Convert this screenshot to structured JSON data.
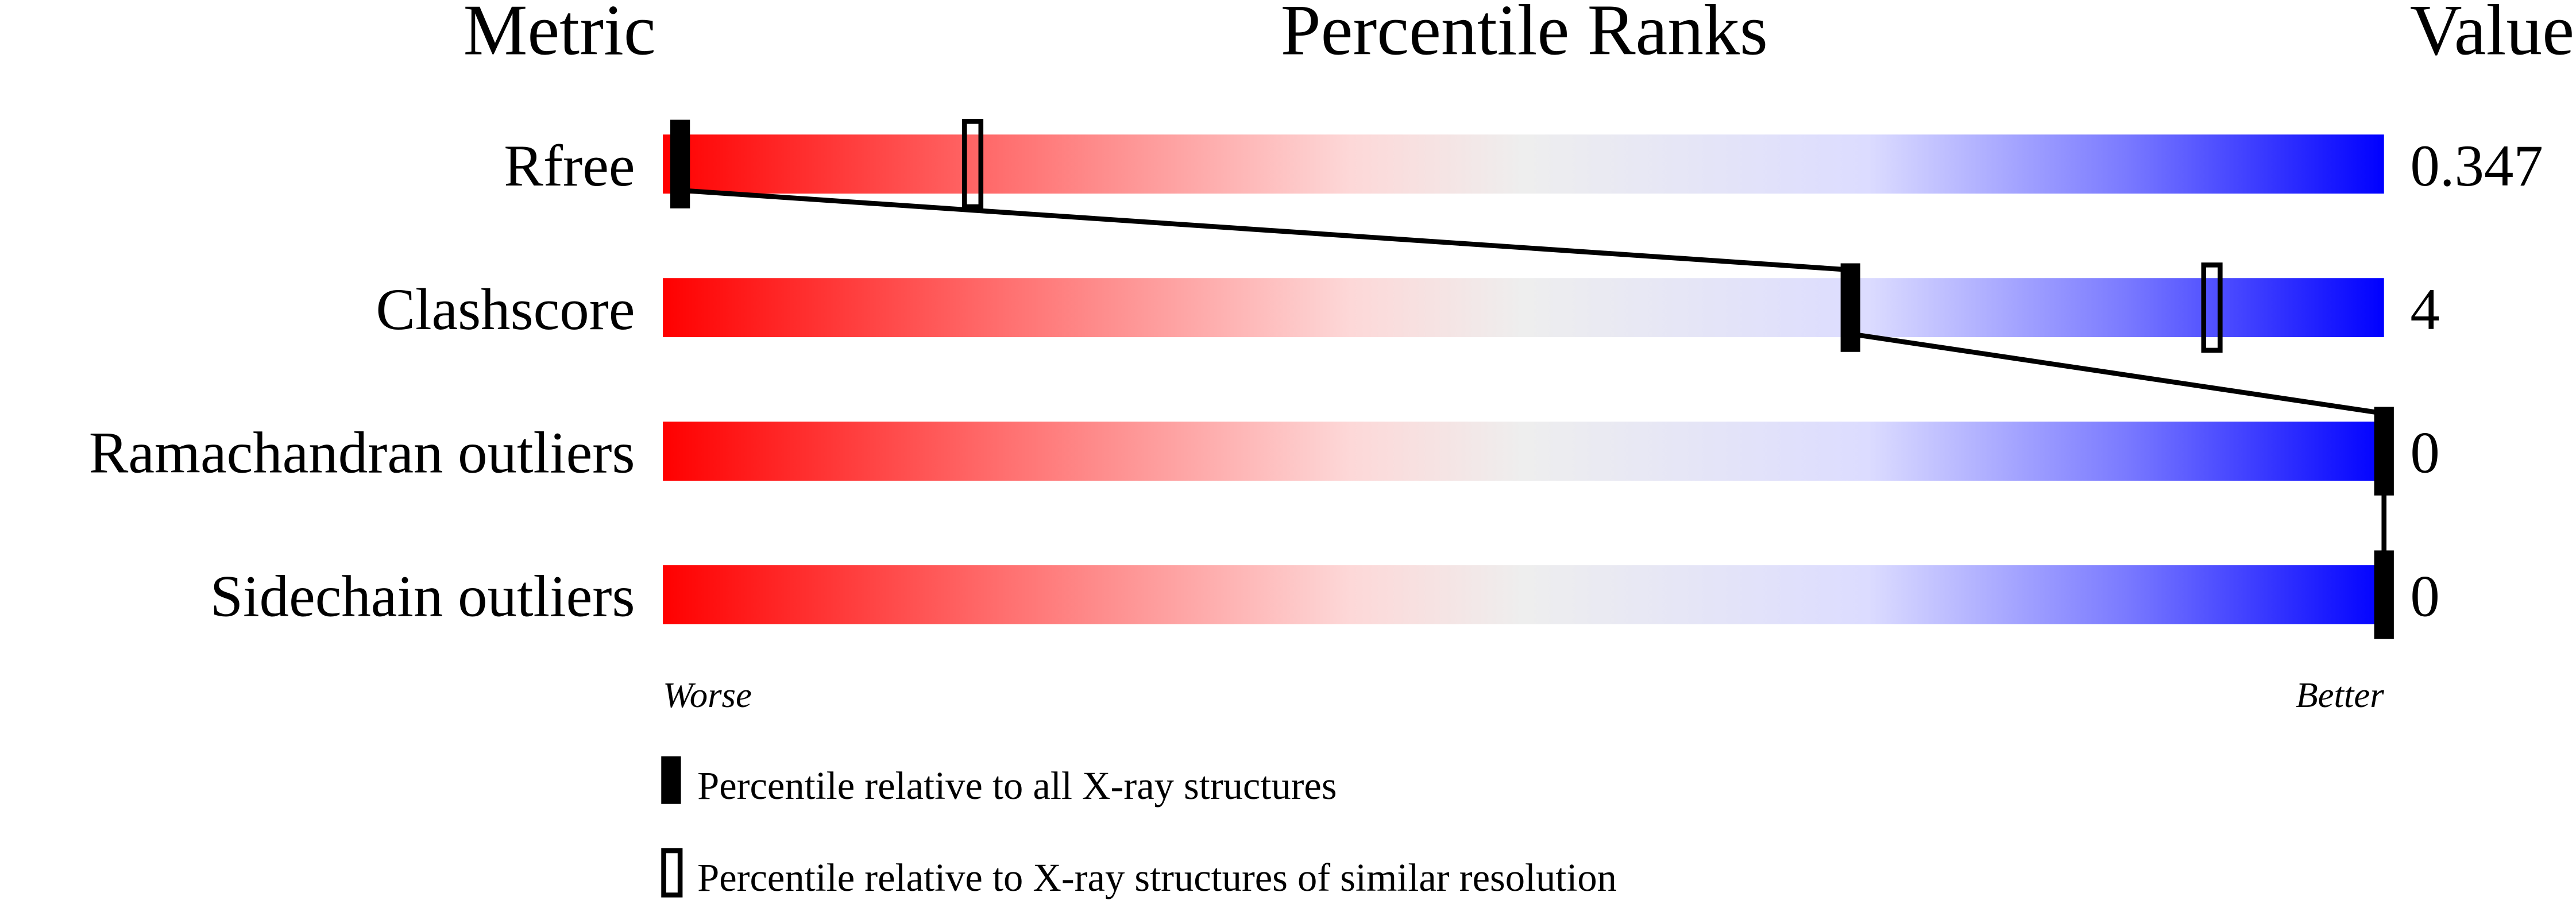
{
  "chart_data": {
    "type": "percentile-slider",
    "headers": {
      "metric": "Metric",
      "ranks": "Percentile Ranks",
      "value": "Value"
    },
    "xlim": [
      0,
      100
    ],
    "axis_labels": {
      "left": "Worse",
      "right": "Better"
    },
    "gradient_colors": [
      "#ff0000",
      "#ff7070",
      "#fdd8d8",
      "#eeeeee",
      "#dcdcff",
      "#7a7aff",
      "#0000ff"
    ],
    "metrics": [
      {
        "name": "Rfree",
        "value": "0.347",
        "percentile_all": 1,
        "percentile_similar": 18
      },
      {
        "name": "Clashscore",
        "value": "4",
        "percentile_all": 69,
        "percentile_similar": 90
      },
      {
        "name": "Ramachandran outliers",
        "value": "0",
        "percentile_all": 100,
        "percentile_similar": null
      },
      {
        "name": "Sidechain outliers",
        "value": "0",
        "percentile_all": 100,
        "percentile_similar": null
      }
    ],
    "legend": [
      {
        "marker": "filled",
        "label": "Percentile relative to all X-ray structures"
      },
      {
        "marker": "open",
        "label": "Percentile relative to X-ray structures of similar resolution"
      }
    ]
  }
}
